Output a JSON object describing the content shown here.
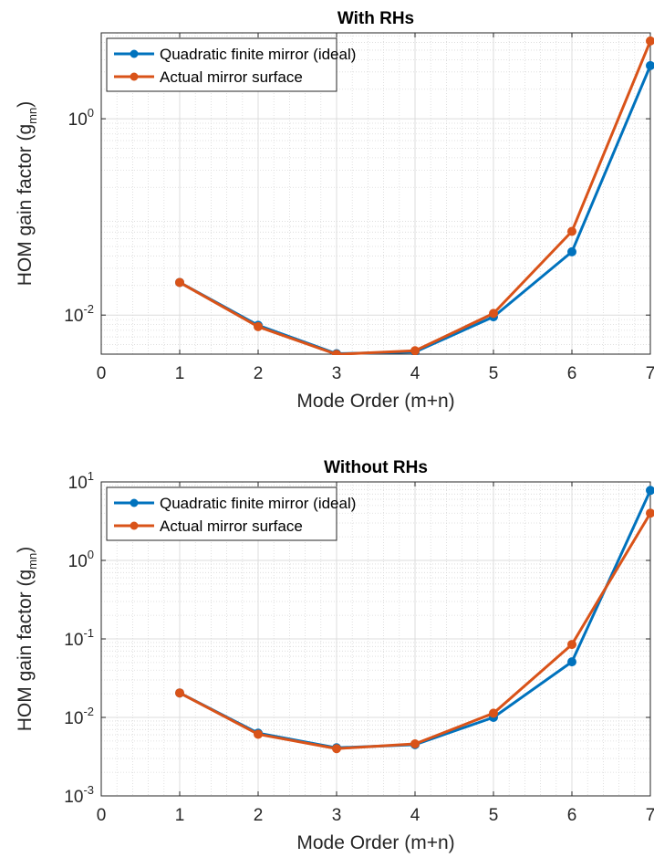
{
  "chart_data": [
    {
      "type": "line",
      "title": "With RHs",
      "xlabel": "Mode Order (m+n)",
      "ylabel_main": "HOM gain factor (g",
      "ylabel_sub": "mn",
      "ylabel_end": ")",
      "xlim": [
        0,
        7
      ],
      "ylim": [
        0.004,
        7.5
      ],
      "yscale": "log",
      "grid": true,
      "minor_grid": true,
      "legend": "top-left",
      "x": [
        1,
        2,
        3,
        4,
        5,
        6,
        7
      ],
      "xticks": [
        "0",
        "1",
        "2",
        "3",
        "4",
        "5",
        "6",
        "7"
      ],
      "yticks": [
        {
          "value": 1,
          "base": "10",
          "exp": "0"
        },
        {
          "value": 0.01,
          "base": "10",
          "exp": "-2"
        }
      ],
      "series": [
        {
          "name": "Quadratic finite mirror (ideal)",
          "color": "#0072BD",
          "values": [
            0.0215,
            0.00787,
            0.00404,
            0.00421,
            0.0096,
            0.0441,
            3.48
          ]
        },
        {
          "name": "Actual mirror surface",
          "color": "#D95319",
          "values": [
            0.0215,
            0.00762,
            0.00398,
            0.00433,
            0.0104,
            0.0712,
            6.2
          ]
        }
      ]
    },
    {
      "type": "line",
      "title": "Without RHs",
      "xlabel": "Mode Order (m+n)",
      "ylabel_main": "HOM gain factor (g",
      "ylabel_sub": "mn",
      "ylabel_end": ")",
      "xlim": [
        0,
        7
      ],
      "ylim": [
        0.001,
        10
      ],
      "yscale": "log",
      "grid": true,
      "minor_grid": true,
      "legend": "top-left",
      "x": [
        1,
        2,
        3,
        4,
        5,
        6,
        7
      ],
      "xticks": [
        "0",
        "1",
        "2",
        "3",
        "4",
        "5",
        "6",
        "7"
      ],
      "yticks": [
        {
          "value": 10,
          "base": "10",
          "exp": "1"
        },
        {
          "value": 1,
          "base": "10",
          "exp": "0"
        },
        {
          "value": 0.1,
          "base": "10",
          "exp": "-1"
        },
        {
          "value": 0.01,
          "base": "10",
          "exp": "-2"
        },
        {
          "value": 0.001,
          "base": "10",
          "exp": "-3"
        }
      ],
      "series": [
        {
          "name": "Quadratic finite mirror (ideal)",
          "color": "#0072BD",
          "values": [
            0.0205,
            0.0063,
            0.0041,
            0.0045,
            0.01,
            0.051,
            7.8
          ]
        },
        {
          "name": "Actual mirror surface",
          "color": "#D95319",
          "values": [
            0.0205,
            0.0061,
            0.004,
            0.0046,
            0.0113,
            0.085,
            4.0
          ]
        }
      ]
    }
  ]
}
